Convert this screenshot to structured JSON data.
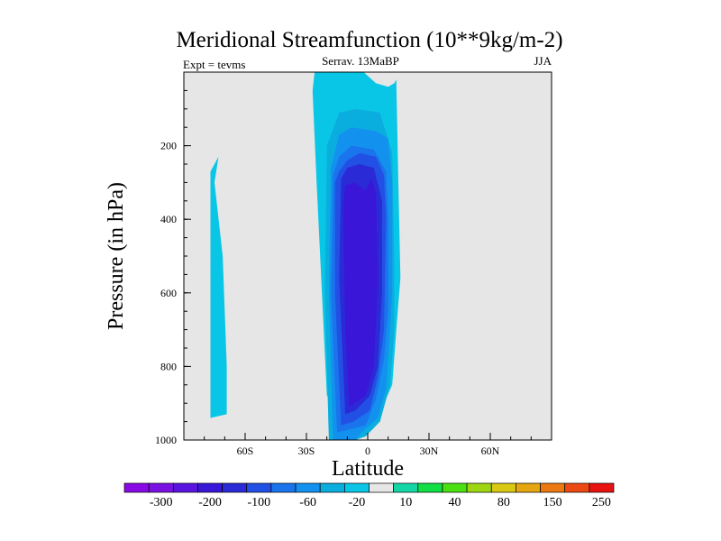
{
  "chart_data": {
    "type": "filled-contour",
    "title": "Meridional Streamfunction (10**9kg/m-2)",
    "subtitle_left": "Expt = tevms",
    "subtitle_center": "Serrav.  13MaBP",
    "subtitle_right": "JJA",
    "xlabel": "Latitude",
    "ylabel": "Pressure (in hPa)",
    "xlim": [
      -90,
      90
    ],
    "ylim": [
      1000,
      0
    ],
    "x_ticks": [
      {
        "value": -60,
        "label": "60S"
      },
      {
        "value": -30,
        "label": "30S"
      },
      {
        "value": 0,
        "label": "0"
      },
      {
        "value": 30,
        "label": "30N"
      },
      {
        "value": 60,
        "label": "60N"
      }
    ],
    "y_ticks": [
      {
        "value": 200,
        "label": "200"
      },
      {
        "value": 400,
        "label": "400"
      },
      {
        "value": 600,
        "label": "600"
      },
      {
        "value": 800,
        "label": "800"
      },
      {
        "value": 1000,
        "label": "1000"
      }
    ],
    "background_color": "#e6e6e6",
    "colorbar": {
      "colors": [
        "#8a0ae6",
        "#7a12e4",
        "#5a14e0",
        "#3a16d8",
        "#2a2ad6",
        "#2250e4",
        "#1a74ec",
        "#1292ee",
        "#0aaede",
        "#0ac6e6",
        "#e6e6e6",
        "#12d6a6",
        "#12de46",
        "#4ae012",
        "#9ed612",
        "#d8c812",
        "#e6a612",
        "#ec7812",
        "#ec4a12",
        "#e81212"
      ],
      "labels": [
        "-300",
        "-200",
        "-100",
        "-60",
        "-20",
        "10",
        "40",
        "80",
        "150",
        "250"
      ]
    },
    "regions": [
      {
        "level": 1,
        "lat": [
          -90,
          -70,
          -43,
          -40,
          -33,
          -30,
          -32,
          -20,
          -12,
          -10,
          -8,
          10,
          18,
          22,
          -4,
          -10,
          -12,
          -14,
          -16,
          -12,
          -19,
          -28,
          -36,
          -48,
          -58,
          -90
        ],
        "p": [
          200,
          200,
          200,
          390,
          410,
          380,
          180,
          20,
          10,
          5,
          0,
          0,
          0,
          10,
          20,
          30,
          100,
          300,
          500,
          700,
          800,
          900,
          980,
          1000,
          1000,
          1000
        ]
      },
      {
        "level": -1,
        "lat": [
          -77,
          -69,
          -69,
          -71,
          -75,
          -73,
          -77
        ],
        "p": [
          940,
          930,
          800,
          500,
          300,
          230,
          270
        ]
      },
      {
        "level": 1,
        "lat": [
          -45,
          -30,
          -45,
          -46
        ],
        "p": [
          460,
          930,
          660,
          480
        ]
      },
      {
        "level": 1,
        "lat": [
          13,
          14,
          17,
          20,
          18,
          23,
          27,
          30,
          34,
          36,
          40,
          40,
          33,
          37,
          36,
          35,
          33,
          35,
          32,
          28,
          25,
          22,
          20
        ],
        "p": [
          0,
          0,
          10,
          50,
          160,
          180,
          150,
          0,
          0,
          10,
          0,
          220,
          440,
          460,
          500,
          610,
          620,
          790,
          800,
          900,
          950,
          1000,
          850
        ]
      },
      {
        "level": -1,
        "lat": [
          -23,
          -14,
          -6,
          -2,
          4,
          10,
          13,
          14,
          15,
          16,
          14,
          12,
          8,
          2,
          -8,
          -20,
          -25,
          -27,
          -26,
          -23
        ],
        "p": [
          0,
          0,
          0,
          0,
          30,
          40,
          30,
          20,
          300,
          560,
          700,
          850,
          900,
          920,
          920,
          880,
          300,
          50,
          0,
          0
        ]
      },
      {
        "level": -2,
        "lat": [
          -19,
          -13,
          -6,
          -1,
          6,
          11,
          13,
          13,
          12,
          6,
          -6,
          -14,
          -20,
          -21,
          -19
        ],
        "p": [
          1000,
          1000,
          1000,
          990,
          950,
          850,
          700,
          500,
          220,
          110,
          100,
          110,
          200,
          600,
          1000
        ]
      },
      {
        "level": -3,
        "lat": [
          -17,
          -6,
          -3,
          5,
          9,
          11,
          12,
          12,
          10,
          4,
          -8,
          -14,
          -18,
          -19,
          -17
        ],
        "p": [
          1000,
          1000,
          980,
          940,
          860,
          700,
          600,
          300,
          180,
          160,
          150,
          170,
          260,
          600,
          1000
        ]
      },
      {
        "level": -4,
        "lat": [
          -15,
          -8,
          -1,
          4,
          8,
          10,
          10,
          9,
          3,
          -8,
          -14,
          -17,
          -18,
          -15
        ],
        "p": [
          980,
          970,
          960,
          890,
          780,
          650,
          400,
          270,
          210,
          200,
          230,
          280,
          600,
          980
        ]
      },
      {
        "level": -5,
        "lat": [
          -13,
          -7,
          1,
          5,
          8,
          9,
          8,
          4,
          -4,
          -10,
          -14,
          -16,
          -16,
          -13
        ],
        "p": [
          960,
          950,
          920,
          830,
          700,
          400,
          280,
          230,
          220,
          240,
          270,
          300,
          600,
          960
        ]
      },
      {
        "level": -6,
        "lat": [
          -11,
          -6,
          1,
          5,
          7,
          7,
          3,
          -4,
          -10,
          -13,
          -14,
          -11
        ],
        "p": [
          930,
          920,
          880,
          800,
          600,
          350,
          260,
          250,
          260,
          290,
          560,
          930
        ]
      },
      {
        "level": -7,
        "lat": [
          -9,
          -1,
          3,
          5,
          4,
          2,
          -1,
          -7,
          -11,
          -12,
          -11,
          -9
        ],
        "p": [
          910,
          880,
          800,
          560,
          330,
          290,
          320,
          300,
          310,
          360,
          700,
          910
        ]
      },
      {
        "level": -8,
        "lat": [
          -8,
          -6,
          -5,
          -6,
          -8
        ],
        "p": [
          800,
          760,
          700,
          760,
          800
        ]
      }
    ]
  }
}
